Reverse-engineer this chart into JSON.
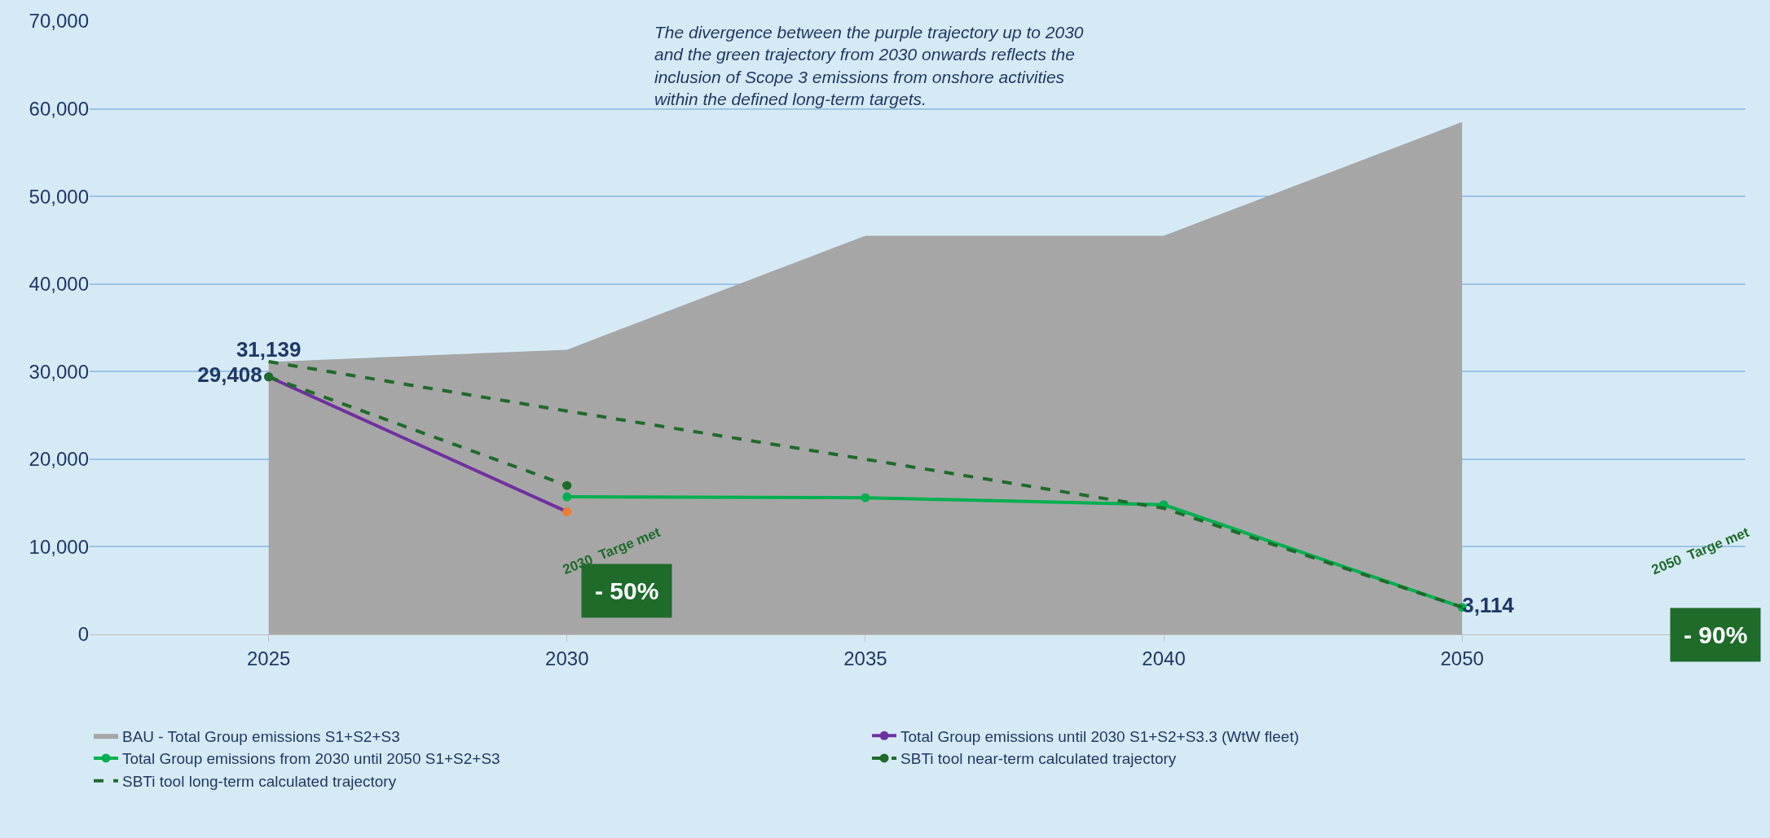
{
  "chart_data": {
    "type": "line",
    "categories": [
      "2025",
      "2030",
      "2035",
      "2040",
      "2050"
    ],
    "series": [
      {
        "name": "BAU - Total Group emissions S1+S2+S3",
        "type": "area",
        "color": "#a6a6a6",
        "values": [
          31100,
          32500,
          45500,
          45500,
          58500
        ],
        "marker": "none"
      },
      {
        "name": "Total Group emissions until 2030 S1+S2+S3.3 (WtW fleet)",
        "color": "#7030a0",
        "colors": [
          "#7030a0",
          "#ed7d31",
          "#7030a0",
          "#7030a0",
          "#7030a0"
        ],
        "values": [
          29400,
          14000,
          null,
          null,
          null
        ],
        "marker": "circle",
        "line_style": "solid"
      },
      {
        "name": "Total Group emissions from 2030 until 2050 S1+S2+S3",
        "color": "#00b050",
        "values": [
          null,
          15700,
          15600,
          14800,
          3100
        ],
        "marker": "circle",
        "line_style": "solid"
      },
      {
        "name": "SBTi tool near-term calculated trajectory",
        "color": "#1e6b2a",
        "values": [
          29408,
          17000,
          null,
          null,
          null
        ],
        "marker": "circle",
        "line_style": "dashed",
        "value_labels": [
          "29,408",
          null,
          null,
          null,
          null
        ]
      },
      {
        "name": "SBTi tool long-term calculated trajectory",
        "color": "#1e6b2a",
        "values": [
          31139,
          25500,
          20000,
          14400,
          3114
        ],
        "marker": "none",
        "line_style": "dashed",
        "value_labels": [
          "31,139",
          null,
          null,
          null,
          "3,114"
        ]
      }
    ],
    "ylim": [
      0,
      70000
    ],
    "yticks": [
      {
        "value": 0,
        "label": "0"
      },
      {
        "value": 10000,
        "label": "10,000"
      },
      {
        "value": 20000,
        "label": "20,000"
      },
      {
        "value": 30000,
        "label": "30,000"
      },
      {
        "value": 40000,
        "label": "40,000"
      },
      {
        "value": 50000,
        "label": "50,000"
      },
      {
        "value": 60000,
        "label": "60,000"
      },
      {
        "value": 70000,
        "label": "70,000"
      }
    ],
    "grid": "y",
    "legend": "bottom",
    "annotations": [
      "The divergence between the purple trajectory up to 2030 and the green trajectory from 2030 onwards reflects the inclusion of Scope 3 emissions from onshore activities within the defined long-term targets.",
      "2030  Targe met",
      "- 50%",
      "2050  Targe met",
      "- 90%"
    ]
  }
}
